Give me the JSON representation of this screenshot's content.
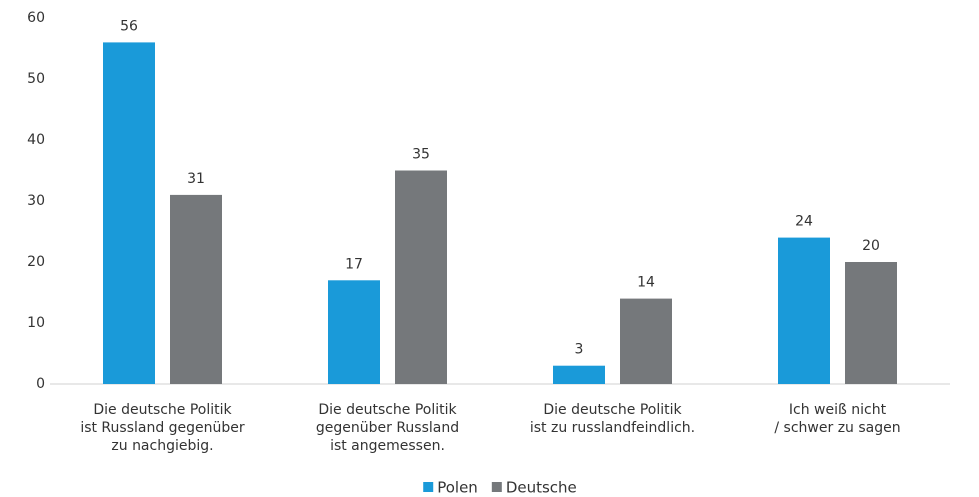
{
  "chart_data": {
    "type": "bar",
    "categories": [
      [
        "Die deutsche Politik",
        "ist Russland gegenüber",
        "zu nachgiebig."
      ],
      [
        "Die deutsche Politik",
        "gegenüber Russland",
        "ist angemessen."
      ],
      [
        "Die deutsche Politik",
        "ist zu russlandfeindlich."
      ],
      [
        "Ich weiß nicht",
        "/ schwer zu sagen"
      ]
    ],
    "series": [
      {
        "name": "Polen",
        "color": "#1a9ad9",
        "values": [
          56,
          17,
          3,
          24
        ]
      },
      {
        "name": "Deutsche",
        "color": "#75787b",
        "values": [
          31,
          35,
          14,
          20
        ]
      }
    ],
    "ylim": [
      0,
      60
    ],
    "yticks": [
      0,
      10,
      20,
      30,
      40,
      50,
      60
    ],
    "grid": false,
    "legend": "bottom"
  }
}
